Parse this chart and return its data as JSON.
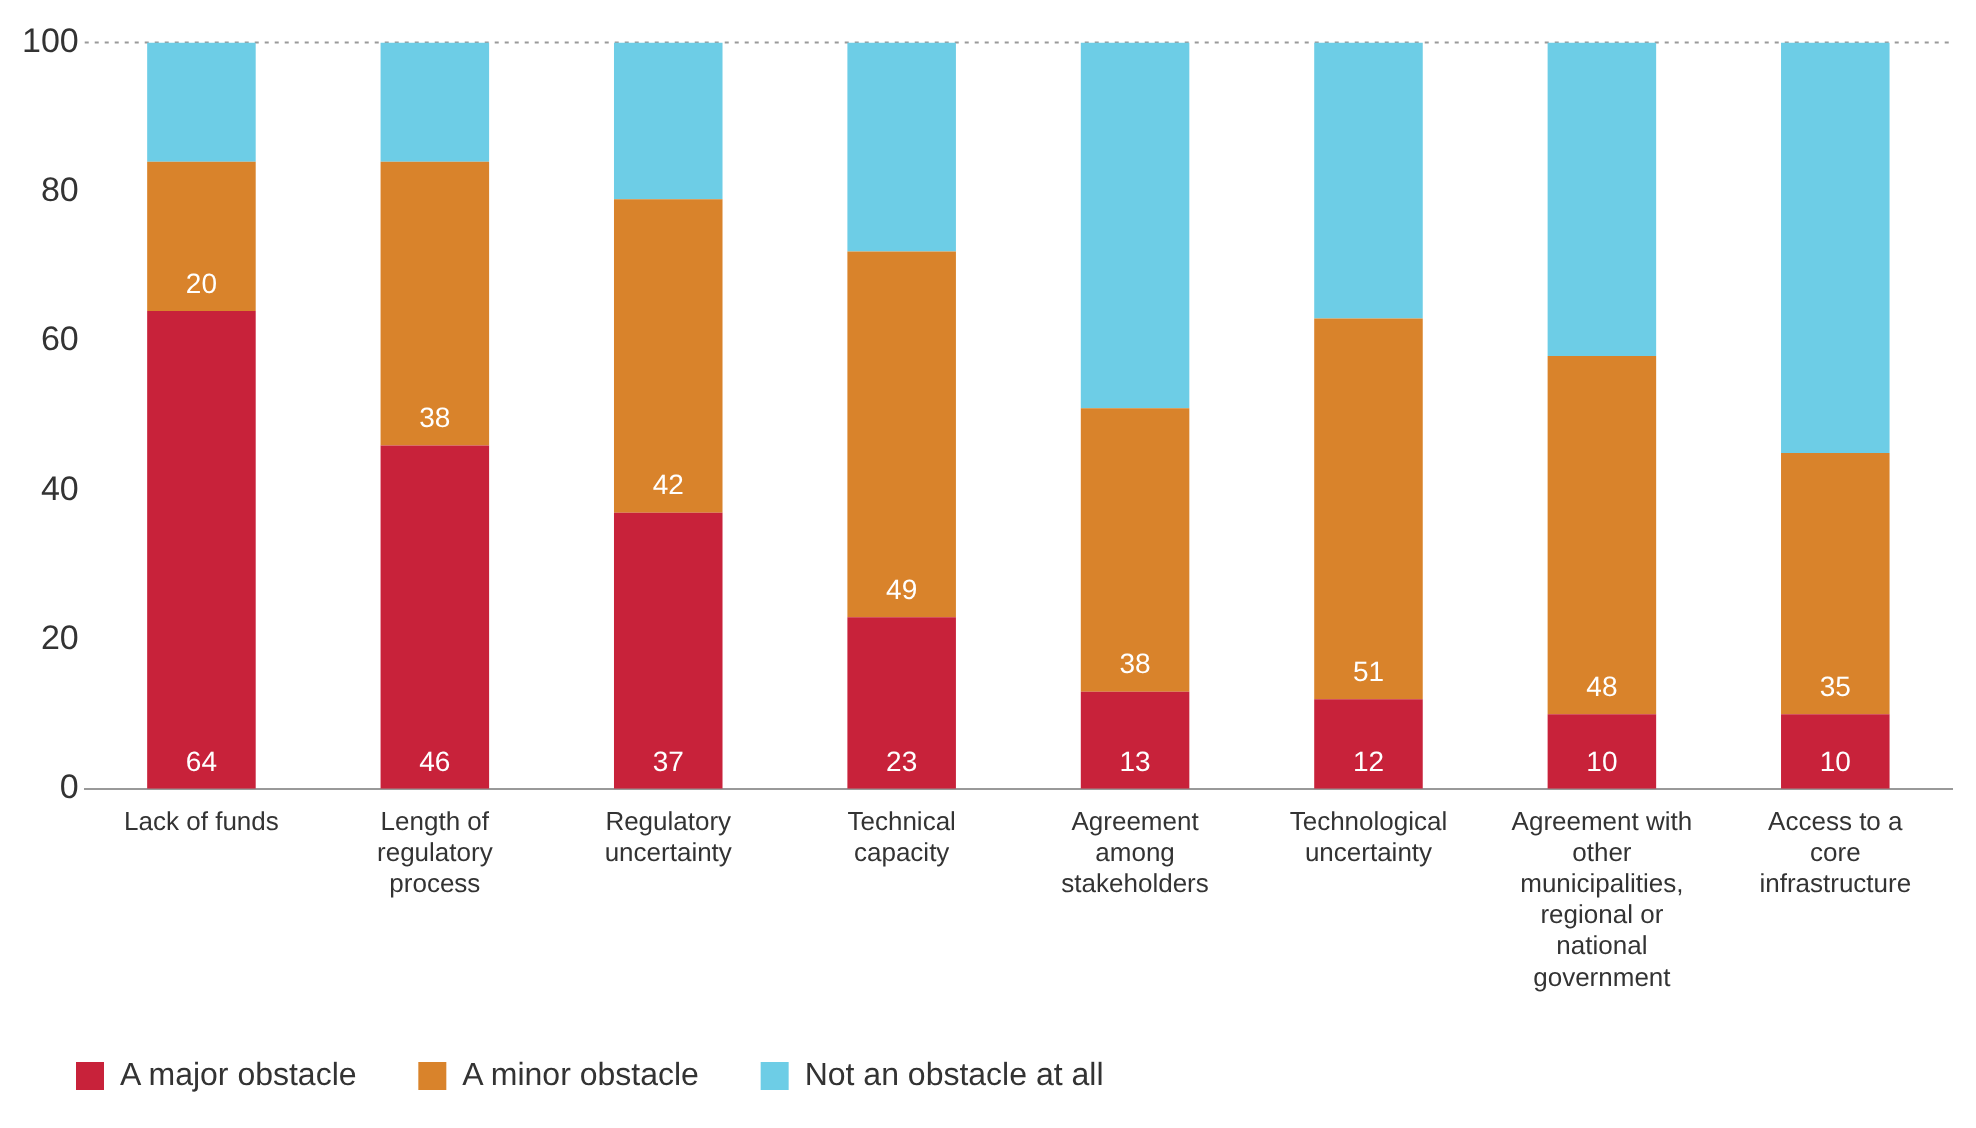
{
  "chart_data": {
    "type": "bar",
    "stacked": true,
    "categories": [
      "Lack of funds",
      "Length of regulatory process",
      "Regulatory uncertainty",
      "Technical capacity",
      "Agreement among stakeholders",
      "Technological uncertainty",
      "Agreement with other municipalities, regional or national government",
      "Access to a core infrastructure"
    ],
    "series": [
      {
        "name": "A major obstacle",
        "color": "#c8223a",
        "values": [
          64,
          46,
          37,
          23,
          13,
          12,
          10,
          10
        ],
        "value_labels": [
          "64",
          "46",
          "37",
          "23",
          "13",
          "12",
          "10",
          "10"
        ]
      },
      {
        "name": "A minor obstacle",
        "color": "#d9832b",
        "values": [
          20,
          38,
          42,
          49,
          38,
          51,
          48,
          35
        ],
        "value_labels": [
          "20",
          "38",
          "42",
          "49",
          "38",
          "51",
          "48",
          "35"
        ]
      },
      {
        "name": "Not an obstacle at all",
        "color": "#6dcde6",
        "values": [
          16,
          16,
          21,
          28,
          49,
          37,
          42,
          55
        ]
      }
    ],
    "ylim": [
      0,
      100
    ],
    "yticks": [
      0,
      20,
      40,
      60,
      80,
      100
    ],
    "grid": false,
    "legend": "bottom left",
    "ref_lines": [
      {
        "axis": "y",
        "value": 100,
        "color": "#999999",
        "line_style": "dotted"
      }
    ]
  }
}
